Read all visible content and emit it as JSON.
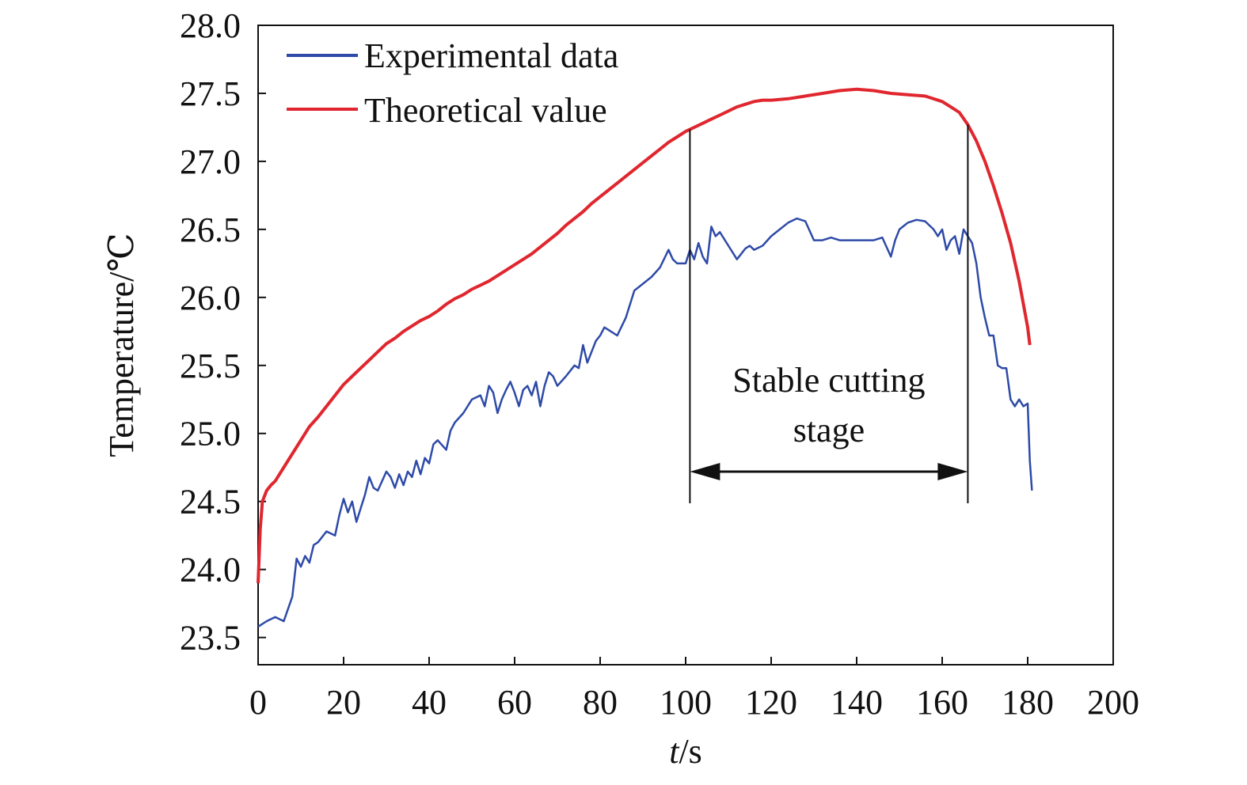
{
  "chart_data": {
    "type": "line",
    "title": "",
    "xlabel_italic": "t",
    "xlabel_rest": "/s",
    "ylabel": "Temperature/℃",
    "xlim": [
      0,
      200
    ],
    "ylim": [
      23.3,
      28.0
    ],
    "xticks": [
      0,
      20,
      40,
      60,
      80,
      100,
      120,
      140,
      160,
      180,
      200
    ],
    "yticks": [
      23.5,
      24.0,
      24.5,
      25.0,
      25.5,
      26.0,
      26.5,
      27.0,
      27.5,
      28.0
    ],
    "grid": false,
    "legend_position": "top-left",
    "series": [
      {
        "name": "Experimental data",
        "color": "#2e4aa8",
        "x": [
          0,
          2,
          4,
          6,
          8,
          9,
          10,
          11,
          12,
          13,
          14,
          16,
          18,
          19,
          20,
          21,
          22,
          23,
          24,
          25,
          26,
          27,
          28,
          29,
          30,
          31,
          32,
          33,
          34,
          35,
          36,
          37,
          38,
          39,
          40,
          41,
          42,
          44,
          45,
          46,
          48,
          50,
          52,
          53,
          54,
          55,
          56,
          57,
          58,
          59,
          60,
          61,
          62,
          63,
          64,
          65,
          66,
          67,
          68,
          69,
          70,
          72,
          74,
          75,
          76,
          77,
          78,
          79,
          80,
          81,
          82,
          84,
          86,
          88,
          90,
          92,
          94,
          96,
          97,
          98,
          100,
          101,
          102,
          103,
          104,
          105,
          106,
          107,
          108,
          110,
          112,
          114,
          115,
          116,
          118,
          120,
          122,
          124,
          126,
          128,
          130,
          132,
          134,
          136,
          138,
          140,
          142,
          144,
          146,
          148,
          149,
          150,
          152,
          154,
          156,
          158,
          159,
          160,
          161,
          162,
          163,
          164,
          165,
          166,
          167,
          168,
          169,
          170,
          171,
          172,
          173,
          174,
          175,
          176,
          177,
          178,
          179,
          180,
          180.5,
          181
        ],
        "y": [
          23.58,
          23.62,
          23.65,
          23.62,
          23.8,
          24.08,
          24.02,
          24.1,
          24.05,
          24.18,
          24.2,
          24.28,
          24.25,
          24.4,
          24.52,
          24.42,
          24.5,
          24.35,
          24.45,
          24.55,
          24.68,
          24.6,
          24.58,
          24.65,
          24.72,
          24.68,
          24.6,
          24.7,
          24.62,
          24.72,
          24.68,
          24.8,
          24.7,
          24.82,
          24.78,
          24.92,
          24.95,
          24.88,
          25.02,
          25.08,
          25.15,
          25.25,
          25.28,
          25.2,
          25.35,
          25.3,
          25.15,
          25.25,
          25.32,
          25.38,
          25.3,
          25.2,
          25.32,
          25.35,
          25.28,
          25.38,
          25.2,
          25.35,
          25.45,
          25.42,
          25.35,
          25.42,
          25.5,
          25.48,
          25.65,
          25.52,
          25.6,
          25.68,
          25.72,
          25.78,
          25.76,
          25.72,
          25.85,
          26.05,
          26.1,
          26.15,
          26.22,
          26.35,
          26.28,
          26.25,
          26.25,
          26.35,
          26.28,
          26.4,
          26.3,
          26.25,
          26.52,
          26.45,
          26.48,
          26.38,
          26.28,
          26.36,
          26.38,
          26.35,
          26.38,
          26.45,
          26.5,
          26.55,
          26.58,
          26.56,
          26.42,
          26.42,
          26.44,
          26.42,
          26.42,
          26.42,
          26.42,
          26.42,
          26.44,
          26.3,
          26.42,
          26.5,
          26.55,
          26.57,
          26.56,
          26.5,
          26.45,
          26.5,
          26.35,
          26.42,
          26.45,
          26.32,
          26.5,
          26.45,
          26.4,
          26.25,
          26.0,
          25.85,
          25.72,
          25.72,
          25.5,
          25.48,
          25.48,
          25.25,
          25.2,
          25.25,
          25.2,
          25.22,
          24.8,
          24.58
        ]
      },
      {
        "name": "Theoretical value",
        "color": "#e0262e",
        "x": [
          0,
          0.5,
          1,
          2,
          3,
          4,
          5,
          6,
          8,
          10,
          12,
          14,
          16,
          18,
          20,
          22,
          24,
          26,
          28,
          30,
          32,
          34,
          36,
          38,
          40,
          42,
          44,
          46,
          48,
          50,
          52,
          54,
          56,
          58,
          60,
          62,
          64,
          66,
          68,
          70,
          72,
          74,
          76,
          78,
          80,
          82,
          84,
          86,
          88,
          90,
          92,
          94,
          96,
          98,
          100,
          102,
          104,
          106,
          108,
          110,
          112,
          114,
          116,
          118,
          120,
          124,
          128,
          132,
          136,
          140,
          144,
          148,
          152,
          156,
          160,
          162,
          164,
          166,
          168,
          170,
          172,
          174,
          176,
          178,
          179,
          180,
          180.5
        ],
        "y": [
          23.9,
          24.3,
          24.5,
          24.58,
          24.62,
          24.65,
          24.7,
          24.75,
          24.85,
          24.95,
          25.05,
          25.12,
          25.2,
          25.28,
          25.36,
          25.42,
          25.48,
          25.54,
          25.6,
          25.66,
          25.7,
          25.75,
          25.79,
          25.83,
          25.86,
          25.9,
          25.95,
          25.99,
          26.02,
          26.06,
          26.09,
          26.12,
          26.16,
          26.2,
          26.24,
          26.28,
          26.32,
          26.37,
          26.42,
          26.47,
          26.53,
          26.58,
          26.63,
          26.69,
          26.74,
          26.79,
          26.84,
          26.89,
          26.94,
          26.99,
          27.04,
          27.09,
          27.14,
          27.18,
          27.22,
          27.25,
          27.28,
          27.31,
          27.34,
          27.37,
          27.4,
          27.42,
          27.44,
          27.45,
          27.45,
          27.46,
          27.48,
          27.5,
          27.52,
          27.53,
          27.52,
          27.5,
          27.49,
          27.48,
          27.44,
          27.4,
          27.36,
          27.27,
          27.15,
          27.0,
          26.82,
          26.62,
          26.4,
          26.12,
          25.95,
          25.78,
          25.65
        ]
      }
    ],
    "annotation": {
      "line1": "Stable cutting",
      "line2": "stage",
      "x_start": 101,
      "x_end": 166
    }
  }
}
